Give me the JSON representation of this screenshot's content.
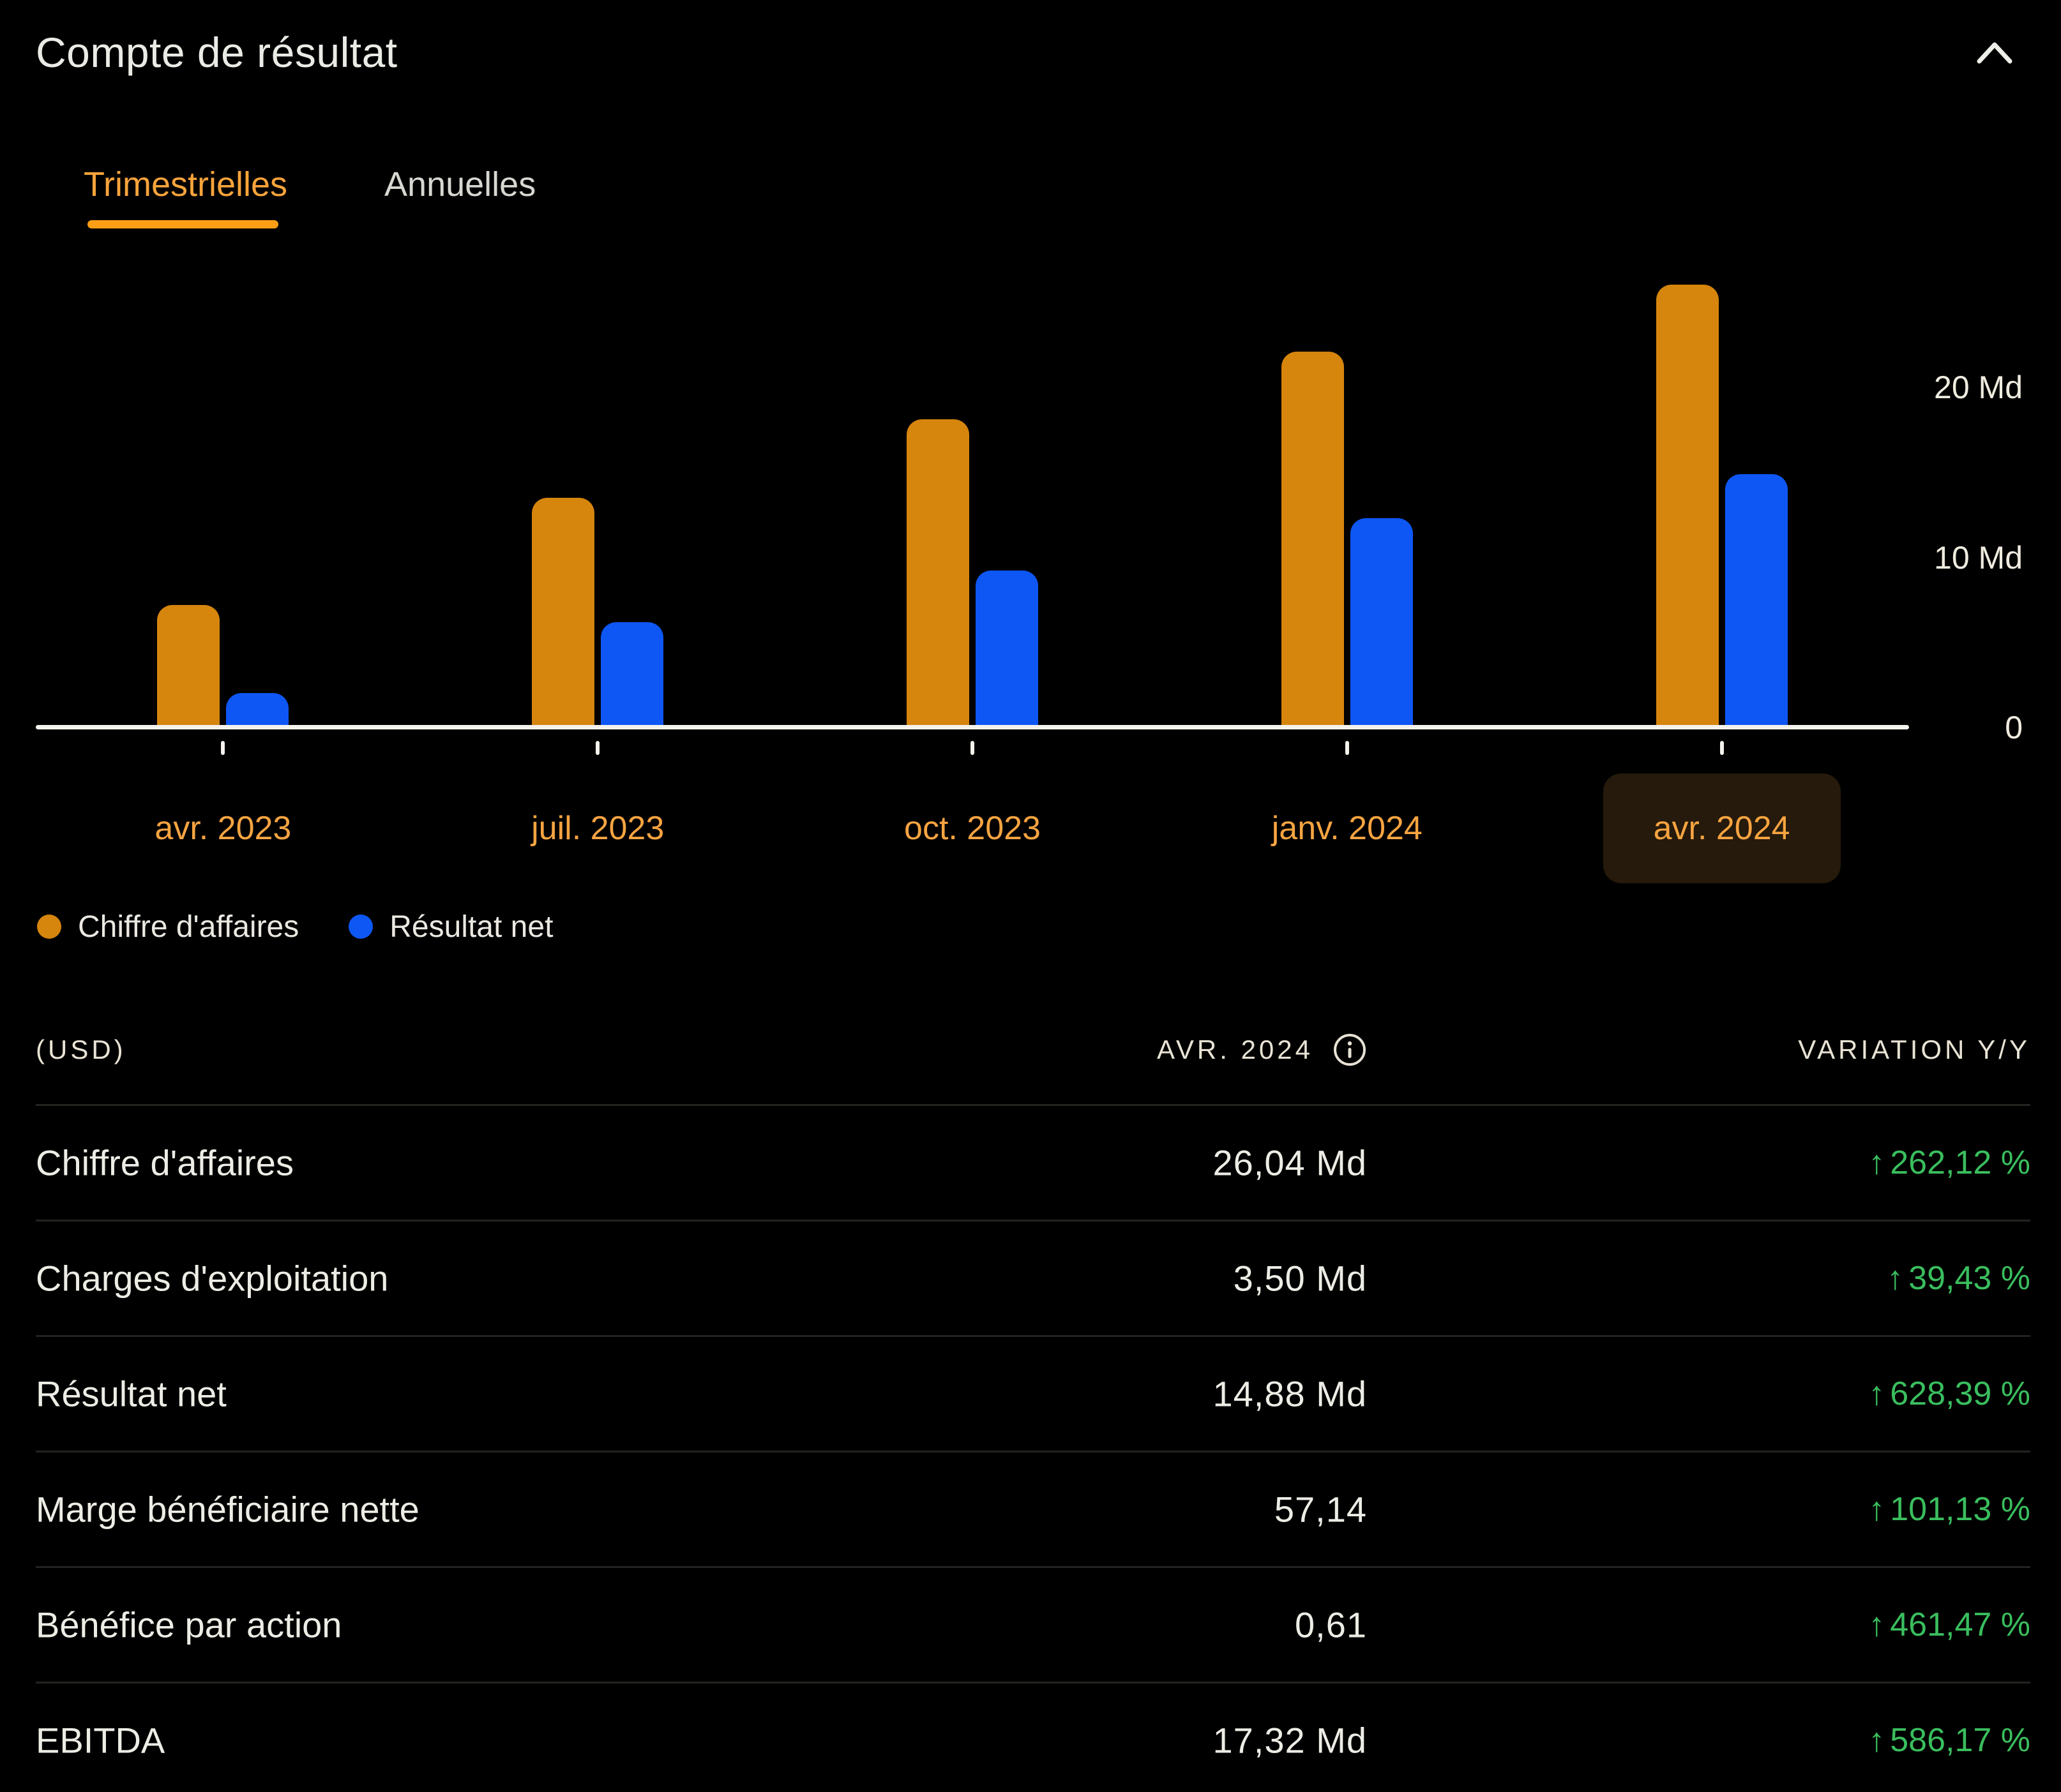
{
  "header": {
    "title": "Compte de résultat"
  },
  "tabs": [
    {
      "label": "Trimestrielles",
      "active": true
    },
    {
      "label": "Annuelles",
      "active": false
    }
  ],
  "chart_data": {
    "type": "bar",
    "categories": [
      "avr. 2023",
      "juil. 2023",
      "oct. 2023",
      "janv. 2024",
      "avr. 2024"
    ],
    "selected_category": "avr. 2024",
    "series": [
      {
        "name": "Chiffre d'affaires",
        "color": "#D6850D",
        "values": [
          7.19,
          13.51,
          18.12,
          22.1,
          26.04
        ]
      },
      {
        "name": "Résultat net",
        "color": "#0E57F4",
        "values": [
          2.04,
          6.19,
          9.24,
          12.29,
          14.88
        ]
      }
    ],
    "unit": "Md",
    "y_ticks": [
      {
        "value": 20,
        "label": "20 Md"
      },
      {
        "value": 10,
        "label": "10 Md"
      },
      {
        "value": 0,
        "label": "0"
      }
    ],
    "ylim": [
      0,
      27.5
    ],
    "grid": false,
    "legend_position": "bottom",
    "axis_label_color_x": "#F7A441",
    "axis_label_color_y": "#EFEBDF"
  },
  "table": {
    "currency_note": "(USD)",
    "period_header": "AVR. 2024",
    "variation_header": "VARIATION Y/Y",
    "up_arrow": "↑",
    "positive_color": "#3ABE5E",
    "rows": [
      {
        "label": "Chiffre d'affaires",
        "value": "26,04 Md",
        "variation": "262,12 %",
        "direction": "up"
      },
      {
        "label": "Charges d'exploitation",
        "value": "3,50 Md",
        "variation": "39,43 %",
        "direction": "up"
      },
      {
        "label": "Résultat net",
        "value": "14,88 Md",
        "variation": "628,39 %",
        "direction": "up"
      },
      {
        "label": "Marge bénéficiaire nette",
        "value": "57,14",
        "variation": "101,13 %",
        "direction": "up"
      },
      {
        "label": "Bénéfice par action",
        "value": "0,61",
        "variation": "461,47 %",
        "direction": "up"
      },
      {
        "label": "EBITDA",
        "value": "17,32 Md",
        "variation": "586,17 %",
        "direction": "up"
      }
    ]
  }
}
